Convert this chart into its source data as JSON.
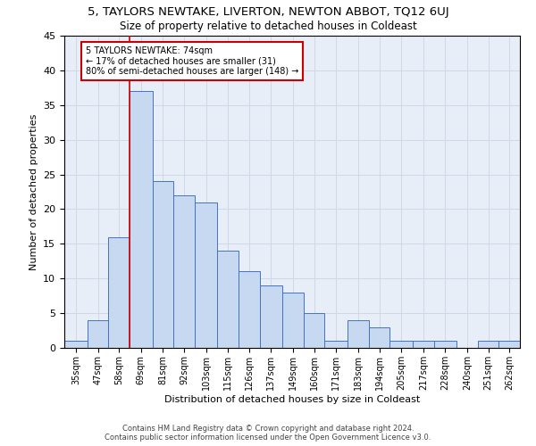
{
  "title": "5, TAYLORS NEWTAKE, LIVERTON, NEWTON ABBOT, TQ12 6UJ",
  "subtitle": "Size of property relative to detached houses in Coldeast",
  "xlabel": "Distribution of detached houses by size in Coldeast",
  "ylabel": "Number of detached properties",
  "bar_edges": [
    35,
    47,
    58,
    69,
    81,
    92,
    103,
    115,
    126,
    137,
    149,
    160,
    171,
    183,
    194,
    205,
    217,
    228,
    240,
    251,
    262,
    273
  ],
  "bar_values": [
    1,
    4,
    16,
    37,
    24,
    22,
    21,
    14,
    11,
    9,
    8,
    5,
    1,
    4,
    3,
    1,
    1,
    1,
    0,
    1,
    1
  ],
  "bar_color": "#c6d9f0",
  "bar_edge_color": "#4472c4",
  "property_bin_index": 3,
  "red_line_color": "#cc0000",
  "annotation_text": "5 TAYLORS NEWTAKE: 74sqm\n← 17% of detached houses are smaller (31)\n80% of semi-detached houses are larger (148) →",
  "annotation_box_color": "white",
  "annotation_box_edge_color": "#cc0000",
  "footer_line1": "Contains HM Land Registry data © Crown copyright and database right 2024.",
  "footer_line2": "Contains public sector information licensed under the Open Government Licence v3.0.",
  "ylim": [
    0,
    45
  ],
  "yticks": [
    0,
    5,
    10,
    15,
    20,
    25,
    30,
    35,
    40,
    45
  ],
  "grid_color": "#d0d8e8",
  "background_color": "#e8eef8",
  "title_fontsize": 9.5,
  "subtitle_fontsize": 8.5,
  "axis_label_fontsize": 8,
  "tick_label_fontsize": 7,
  "annotation_fontsize": 7,
  "footer_fontsize": 6
}
